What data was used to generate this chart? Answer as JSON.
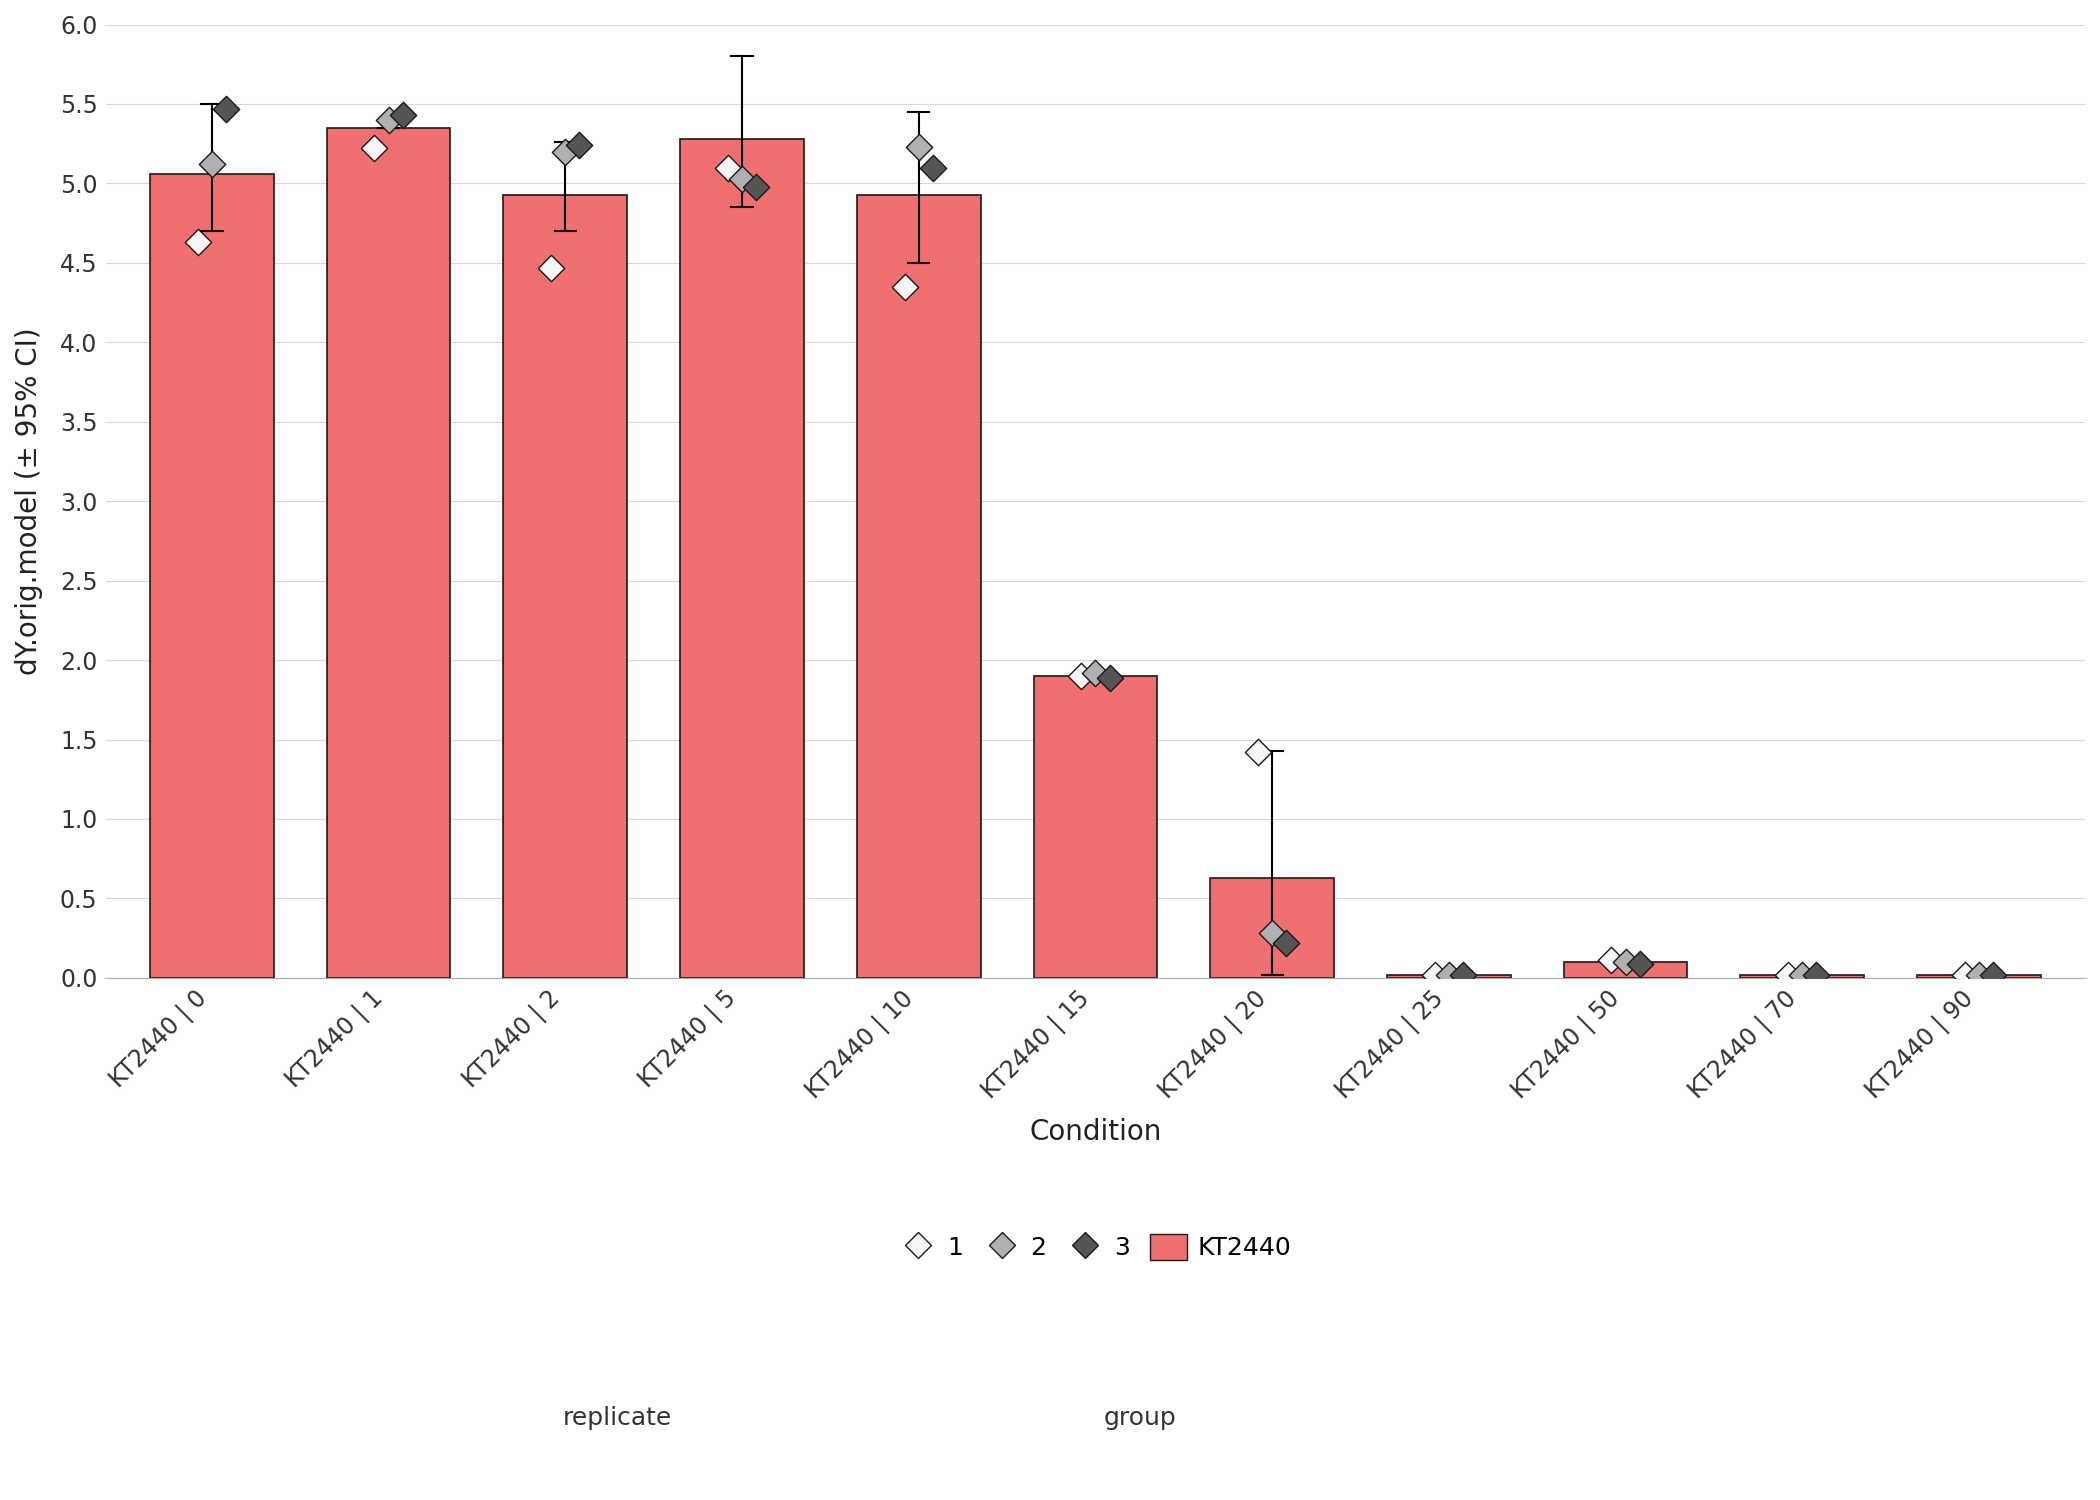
{
  "conditions": [
    "KT2440 | 0",
    "KT2440 | 1",
    "KT2440 | 2",
    "KT2440 | 5",
    "KT2440 | 10",
    "KT2440 | 15",
    "KT2440 | 20",
    "KT2440 | 25",
    "KT2440 | 50",
    "KT2440 | 70",
    "KT2440 | 90"
  ],
  "bar_means": [
    5.06,
    5.35,
    4.93,
    5.28,
    4.93,
    1.9,
    0.63,
    0.02,
    0.1,
    0.02,
    0.02
  ],
  "bar_ci_low": [
    4.7,
    5.35,
    4.7,
    4.85,
    4.5,
    1.87,
    0.02,
    0.02,
    0.08,
    0.02,
    0.02
  ],
  "bar_ci_high": [
    5.5,
    5.35,
    5.26,
    5.8,
    5.45,
    1.93,
    1.43,
    0.02,
    0.12,
    0.02,
    0.02
  ],
  "rep1_values": [
    4.63,
    5.22,
    4.47,
    5.1,
    4.35,
    1.9,
    1.42,
    0.02,
    0.11,
    0.02,
    0.02
  ],
  "rep2_values": [
    5.12,
    5.4,
    5.2,
    5.03,
    5.23,
    1.92,
    0.28,
    0.02,
    0.1,
    0.02,
    0.02
  ],
  "rep3_values": [
    5.47,
    5.43,
    5.24,
    4.98,
    5.1,
    1.89,
    0.22,
    0.02,
    0.09,
    0.02,
    0.02
  ],
  "bar_color": "#F07070",
  "bar_edgecolor": "#1a1a1a",
  "rep1_color": "#f5f5f5",
  "rep2_color": "#b0b0b0",
  "rep3_color": "#555555",
  "rep_edgecolor": "#1a1a1a",
  "background_color": "#ffffff",
  "grid_color": "#d8d8d8",
  "ylabel": "dY.orig.model (± 95% CI)",
  "xlabel": "Condition",
  "ylim": [
    0.0,
    6.0
  ],
  "yticks": [
    0.0,
    0.5,
    1.0,
    1.5,
    2.0,
    2.5,
    3.0,
    3.5,
    4.0,
    4.5,
    5.0,
    5.5,
    6.0
  ],
  "title_fontsize": 14,
  "label_fontsize": 20,
  "tick_fontsize": 17,
  "legend_fontsize": 18
}
